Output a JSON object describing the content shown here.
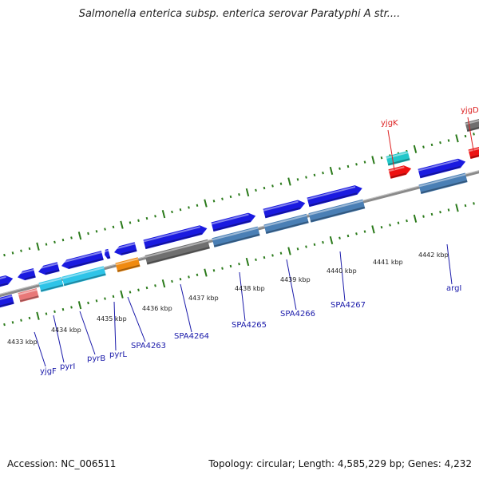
{
  "title": "Salmonella enterica subsp. enterica serovar Paratyphi A str....",
  "footer": {
    "accession": "Accession: NC_006511",
    "summary": "Topology: circular; Length: 4,585,229 bp; Genes: 4,232"
  },
  "colors": {
    "forward": "#1a1ae0",
    "reverse": "#4a7fb5",
    "gray": "#6f6f6f",
    "cyan": "#2ec4e8",
    "teal": "#22c7c9",
    "red": "#ee1111",
    "orange": "#f08a10",
    "pink": "#e87878",
    "tick": "#2a7a1a",
    "backbone": "#8a8a8a",
    "label_blue": "#1a1aaa",
    "label_red": "#dd2222"
  },
  "kbp_labels": [
    "4433 kbp",
    "4434 kbp",
    "4435 kbp",
    "4436 kbp",
    "4437 kbp",
    "4438 kbp",
    "4439 kbp",
    "4440 kbp",
    "4441 kbp",
    "4442 kbp"
  ],
  "gene_labels": [
    "yjgF",
    "pyrI",
    "pyrB",
    "pyrL",
    "SPA4263",
    "SPA4264",
    "SPA4265",
    "SPA4266",
    "SPA4267",
    "argI",
    "yjgK",
    "yjgD"
  ]
}
